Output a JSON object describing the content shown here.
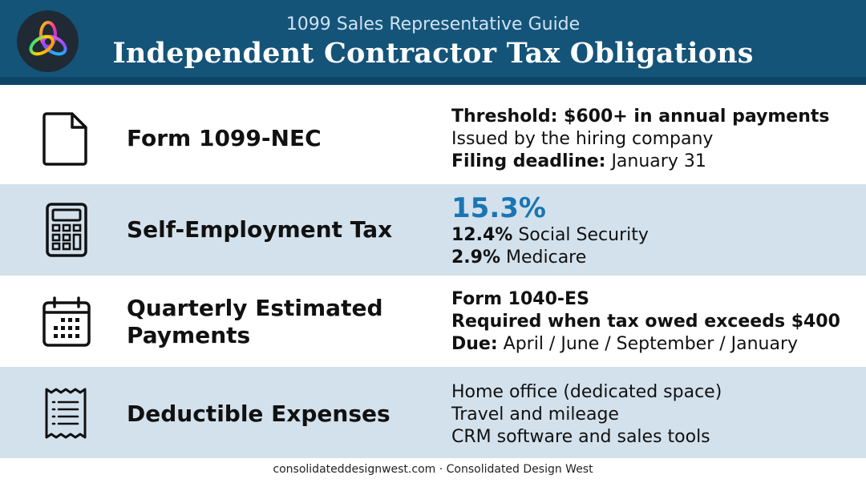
{
  "header": {
    "subtitle": "1099 Sales Representative Guide",
    "title": "Independent Contractor Tax Obligations",
    "logo_icon": "trefoil-logo-icon"
  },
  "colors": {
    "header_bg": "#155479",
    "accent_blue": "#1a75b3",
    "alt_row_bg": "#d3e1ec"
  },
  "rows": [
    {
      "icon": "document-icon",
      "label": "Form 1099-NEC",
      "line1_bold": "Threshold: $600+ in annual payments",
      "line2": "Issued by the hiring company",
      "line3_bold": "Filing deadline:",
      "line3_rest": " January 31"
    },
    {
      "icon": "calculator-icon",
      "label": "Self-Employment Tax",
      "big_value": "15.3%",
      "line2_bold": "12.4%",
      "line2_rest": " Social Security",
      "line3_bold": "2.9%",
      "line3_rest": " Medicare"
    },
    {
      "icon": "calendar-icon",
      "label_line1": "Quarterly Estimated",
      "label_line2": "Payments",
      "line1_bold": "Form 1040-ES",
      "line2_bold": "Required when tax owed exceeds $400",
      "line3_bold": "Due:",
      "line3_rest": " April / June / September / January"
    },
    {
      "icon": "receipt-icon",
      "label": "Deductible Expenses",
      "line1": "Home office (dedicated space)",
      "line2": "Travel and mileage",
      "line3": "CRM software and sales tools"
    }
  ],
  "footer": {
    "text": "consolidateddesignwest.com · Consolidated Design West"
  }
}
